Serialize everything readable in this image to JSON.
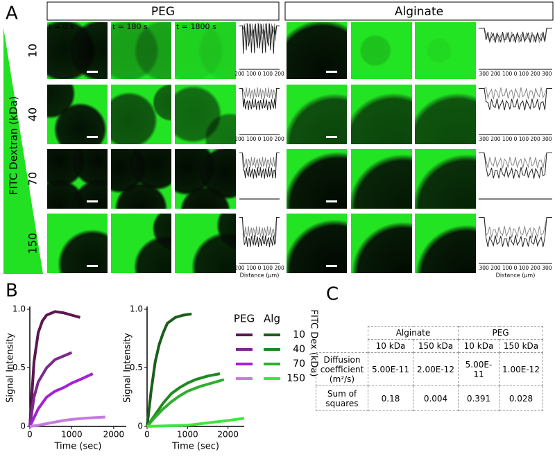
{
  "panel_a": {
    "label": "A",
    "groups": [
      "PEG",
      "Alginate"
    ],
    "times": [
      "t = 0 s",
      "t = 180 s",
      "t = 1800 s"
    ],
    "axis_title": "FITC Dextran (kDa)",
    "rows": [
      "10",
      "40",
      "70",
      "150"
    ],
    "peg_profile_ticks": "200 100  0  100 200",
    "alginate_profile_ticks": "300 200 100  0  100 200 300",
    "profile_xlabel": "Distance (μm)"
  },
  "panel_b": {
    "label": "B"
  },
  "chart_data": [
    {
      "type": "line",
      "xlabel": "Time (sec)",
      "ylabel": "Signal Intensity",
      "legend_header": "PEG",
      "xlim": [
        0,
        2300
      ],
      "xticks": [
        0,
        1000,
        2000
      ],
      "ylim": [
        0,
        1
      ],
      "yticks": [
        0,
        0.5,
        {
          "value": 1,
          "label": "1.0"
        }
      ],
      "series": [
        {
          "color": "#5b1650",
          "x": [
            0,
            100,
            200,
            300,
            400,
            600,
            800,
            1000,
            1200
          ],
          "values": [
            0,
            0.55,
            0.8,
            0.9,
            0.95,
            0.98,
            0.97,
            0.95,
            0.93
          ]
        },
        {
          "color": "#7a2a8c",
          "x": [
            0,
            100,
            200,
            400,
            600,
            800,
            1000
          ],
          "values": [
            0,
            0.25,
            0.38,
            0.5,
            0.57,
            0.6,
            0.63
          ]
        },
        {
          "color": "#a51fd6",
          "x": [
            0,
            200,
            400,
            600,
            800,
            1000,
            1200,
            1500
          ],
          "values": [
            0,
            0.15,
            0.25,
            0.3,
            0.33,
            0.37,
            0.4,
            0.45
          ]
        },
        {
          "color": "#c47ddf",
          "x": [
            0,
            200,
            500,
            800,
            1000,
            1300,
            1800
          ],
          "values": [
            0,
            0.01,
            0.03,
            0.05,
            0.06,
            0.07,
            0.08
          ]
        }
      ]
    },
    {
      "type": "line",
      "xlabel": "Time (sec)",
      "ylabel": "Signal Intensity",
      "legend_header": "Alg",
      "legend_title": "FITC Dex (kDa)",
      "xlim": [
        0,
        2400
      ],
      "xticks": [
        0,
        1000,
        2000
      ],
      "ylim": [
        0,
        1
      ],
      "yticks": [
        0,
        0.5,
        {
          "value": 1,
          "label": "1.0"
        }
      ],
      "series": [
        {
          "name": "10",
          "color": "#1b5e1b",
          "x": [
            0,
            100,
            200,
            300,
            400,
            500,
            700,
            900,
            1100
          ],
          "values": [
            0,
            0.3,
            0.55,
            0.7,
            0.8,
            0.88,
            0.93,
            0.95,
            0.96
          ]
        },
        {
          "name": "40",
          "color": "#1f8a1f",
          "x": [
            0,
            200,
            400,
            600,
            800,
            1000,
            1200,
            1500,
            1800
          ],
          "values": [
            0,
            0.1,
            0.2,
            0.28,
            0.33,
            0.37,
            0.4,
            0.43,
            0.45
          ]
        },
        {
          "name": "70",
          "color": "#2fae2f",
          "x": [
            0,
            200,
            400,
            600,
            800,
            1000,
            1300,
            1600,
            1900
          ],
          "values": [
            0,
            0.08,
            0.15,
            0.21,
            0.26,
            0.3,
            0.34,
            0.37,
            0.4
          ]
        },
        {
          "name": "150",
          "color": "#3de83d",
          "x": [
            0,
            1000,
            1500,
            2000,
            2400
          ],
          "values": [
            0,
            0.01,
            0.03,
            0.05,
            0.07
          ]
        }
      ]
    }
  ],
  "table": {
    "label": "C",
    "groups": [
      "Alginate",
      "PEG"
    ],
    "subheaders": [
      "10 kDa",
      "150 kDa",
      "10 kDa",
      "150 kDa"
    ],
    "rows": [
      [
        "Diffusion coefficient (m²/s)",
        "5.00E-11",
        "2.00E-12",
        "5.00E-11",
        "1.00E-12"
      ],
      [
        "Sum of squares",
        "0.18",
        "0.004",
        "0.391",
        "0.028"
      ]
    ]
  }
}
